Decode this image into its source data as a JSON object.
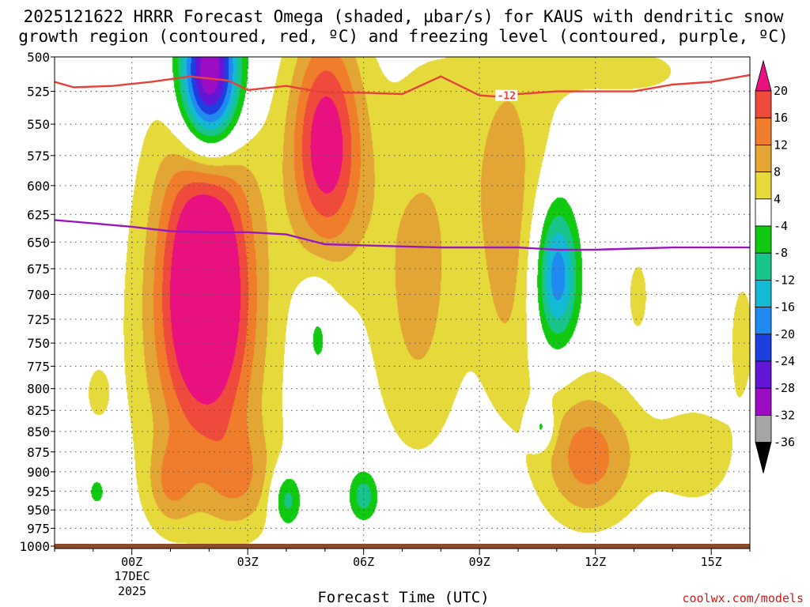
{
  "chart_data": {
    "type": "contour",
    "title_line1": "2025121622 HRRR Forecast Omega (shaded, µbar/s) for KAUS with dendritic snow",
    "title_line2": "growth region (contoured, red, ºC) and freezing level (contoured, purple, ºC)",
    "xlabel": "Forecast Time (UTC)",
    "x_ticks": [
      "00Z",
      "03Z",
      "06Z",
      "09Z",
      "12Z",
      "15Z"
    ],
    "x_tick_hours": [
      0,
      3,
      6,
      9,
      12,
      15
    ],
    "x_date_line1": "17DEC",
    "x_date_line2": "2025",
    "xlim": [
      -2,
      16
    ],
    "y_ticks": [
      500,
      525,
      550,
      575,
      600,
      625,
      650,
      675,
      700,
      725,
      750,
      775,
      800,
      825,
      850,
      875,
      900,
      925,
      950,
      975,
      1000
    ],
    "ylim_hpa": [
      500,
      1000
    ],
    "y_scale": "log-pressure",
    "credit": "coolwx.com/models",
    "colorbar": {
      "ticks": [
        "20",
        "16",
        "12",
        "8",
        "4",
        "-4",
        "-8",
        "-12",
        "-16",
        "-20",
        "-24",
        "-28",
        "-32",
        "-36"
      ],
      "bins": [
        {
          "range": "20+",
          "color": "#e8117f"
        },
        {
          "range": "16 to 20",
          "color": "#f04a3c"
        },
        {
          "range": "12 to 16",
          "color": "#ef7d2c"
        },
        {
          "range": "8 to 12",
          "color": "#e3a635"
        },
        {
          "range": "4 to 8",
          "color": "#e5d93b"
        },
        {
          "range": "-4 to 4",
          "color": "#ffffff"
        },
        {
          "range": "-8 to -4",
          "color": "#11c911"
        },
        {
          "range": "-12 to -8",
          "color": "#19c48b"
        },
        {
          "range": "-16 to -12",
          "color": "#14b9d3"
        },
        {
          "range": "-20 to -16",
          "color": "#1f8bf0"
        },
        {
          "range": "-24 to -20",
          "color": "#1d3fe0"
        },
        {
          "range": "-28 to -24",
          "color": "#6316d6"
        },
        {
          "range": "-32 to -28",
          "color": "#9c0cc4"
        },
        {
          "range": "-36 to -32",
          "color": "#a5a5a5"
        },
        {
          "range": "< -36",
          "color": "#000000"
        }
      ]
    },
    "omega_fields": [
      {
        "name": "ascent-core-0130z",
        "hour": 1.9,
        "p": 690,
        "hw": 1.2,
        "hh": 150,
        "peak": 26
      },
      {
        "name": "ascent-broad-0130z",
        "hour": 1.8,
        "p": 770,
        "hw": 2.2,
        "hh": 240,
        "peak": 7
      },
      {
        "name": "ascent-0500z-upper",
        "hour": 5.0,
        "p": 560,
        "hw": 0.9,
        "hh": 85,
        "peak": 18
      },
      {
        "name": "ascent-0500z-broad",
        "hour": 5.2,
        "p": 600,
        "hw": 1.2,
        "hh": 110,
        "peak": 6
      },
      {
        "name": "ascent-0700z-column",
        "hour": 7.4,
        "p": 700,
        "hw": 1.3,
        "hh": 190,
        "peak": 9
      },
      {
        "name": "ascent-0900z-upper",
        "hour": 9.8,
        "p": 560,
        "hw": 1.7,
        "hh": 120,
        "peak": 6
      },
      {
        "name": "ascent-0930z-column",
        "hour": 9.7,
        "p": 700,
        "hw": 0.8,
        "hh": 150,
        "peak": 7
      },
      {
        "name": "ascent-1200z-lower",
        "hour": 11.8,
        "p": 880,
        "hw": 1.3,
        "hh": 90,
        "peak": 14
      },
      {
        "name": "ascent-1400z-lower",
        "hour": 14.6,
        "p": 880,
        "hw": 1.3,
        "hh": 80,
        "peak": 6
      },
      {
        "name": "ascent-0230z-low",
        "hour": 2.8,
        "p": 910,
        "hw": 1.0,
        "hh": 70,
        "peak": 8
      },
      {
        "name": "ascent-0100z-low",
        "hour": 1.0,
        "p": 915,
        "hw": 0.6,
        "hh": 55,
        "peak": 8
      },
      {
        "name": "ascent-1300z-mid",
        "hour": 13.1,
        "p": 700,
        "hw": 0.4,
        "hh": 55,
        "peak": 5
      },
      {
        "name": "ascent-0030z-mid",
        "hour": -0.9,
        "p": 805,
        "hw": 0.3,
        "hh": 30,
        "peak": 5
      },
      {
        "name": "ascent-1530z-mid",
        "hour": 15.8,
        "p": 740,
        "hw": 0.5,
        "hh": 90,
        "peak": 5
      },
      {
        "name": "ascent-top-band",
        "hour": 13.0,
        "p": 510,
        "hw": 2.0,
        "hh": 25,
        "peak": 5
      },
      {
        "name": "descent-0200z-upper",
        "hour": 2.0,
        "p": 515,
        "hw": 0.8,
        "hh": 60,
        "peak": -40
      },
      {
        "name": "descent-1100z-mid",
        "hour": 11.0,
        "p": 680,
        "hw": 0.55,
        "hh": 70,
        "peak": -20
      },
      {
        "name": "descent-0500z-mid",
        "hour": 4.8,
        "p": 740,
        "hw": 0.45,
        "hh": 55,
        "peak": -7
      },
      {
        "name": "descent-0400z-low",
        "hour": 4.0,
        "p": 935,
        "hw": 0.4,
        "hh": 40,
        "peak": -12
      },
      {
        "name": "descent-0600z-low",
        "hour": 6.0,
        "p": 930,
        "hw": 0.4,
        "hh": 35,
        "peak": -11
      },
      {
        "name": "descent-1000z-low",
        "hour": 10.6,
        "p": 845,
        "hw": 0.3,
        "hh": 25,
        "peak": -10
      },
      {
        "name": "descent-0100z-low",
        "hour": -0.9,
        "p": 925,
        "hw": 0.35,
        "hh": 30,
        "peak": -6
      }
    ],
    "dendritic_line": {
      "label": "-12",
      "color": "#e8413c",
      "hours": [
        -2,
        -1.5,
        -0.5,
        0.5,
        1.5,
        2.5,
        3,
        4,
        5,
        6,
        7,
        8,
        9,
        9.5,
        10,
        11,
        12,
        13,
        14,
        15,
        16
      ],
      "p": [
        518,
        522,
        521,
        518,
        514,
        517,
        524,
        521,
        526,
        526,
        527,
        514,
        528,
        529,
        527,
        525,
        525,
        525,
        520,
        518,
        513
      ]
    },
    "freezing_line": {
      "color": "#9a18c0",
      "hours": [
        -2,
        -1,
        0,
        1,
        2,
        3,
        4,
        5,
        6,
        7,
        8,
        9,
        10,
        11,
        12,
        13,
        14,
        15,
        16
      ],
      "p": [
        630,
        633,
        636,
        640,
        641,
        641,
        643,
        652,
        653,
        654,
        655,
        655,
        655,
        657,
        657,
        656,
        655,
        655,
        655
      ]
    }
  }
}
